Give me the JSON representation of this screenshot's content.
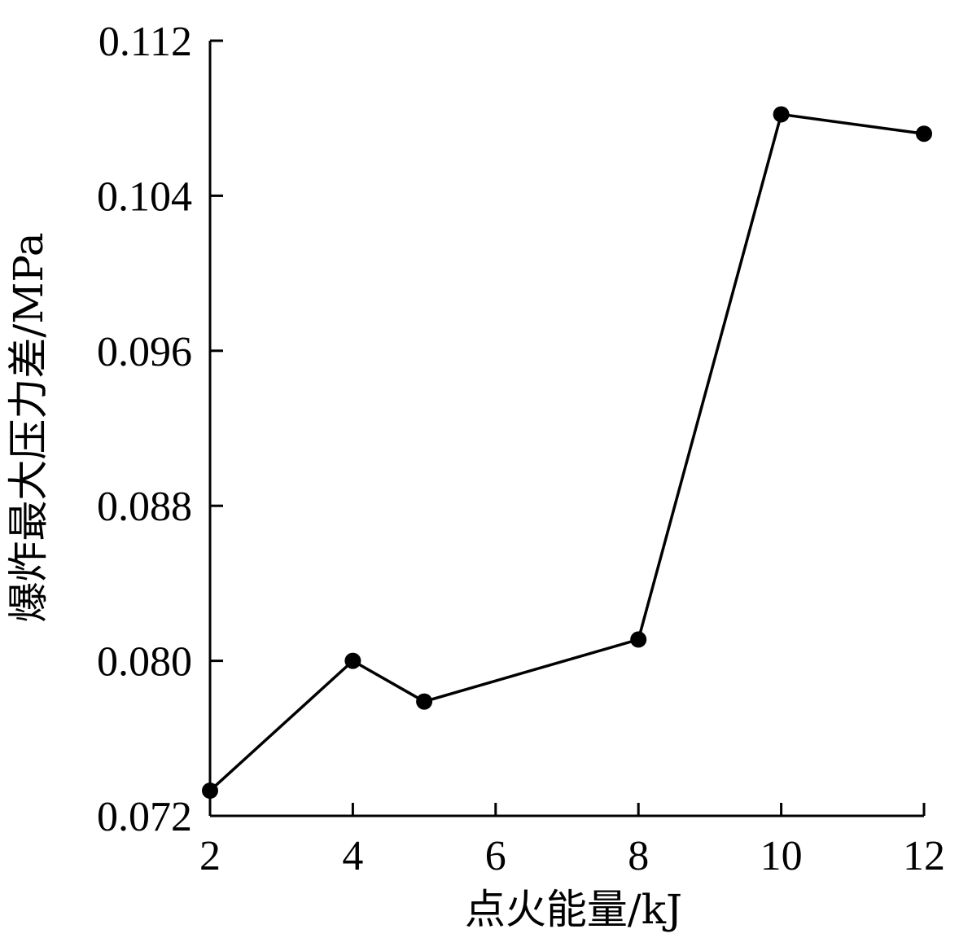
{
  "chart_data": {
    "type": "line",
    "xlabel": "点火能量/kJ",
    "ylabel": "爆炸最大压力差/MPa",
    "x_ticks": [
      "2",
      "4",
      "6",
      "8",
      "10",
      "12"
    ],
    "y_ticks": [
      "0.072",
      "0.080",
      "0.088",
      "0.096",
      "0.104",
      "0.112"
    ],
    "xlim": [
      2,
      12
    ],
    "ylim": [
      0.072,
      0.112
    ],
    "grid": false,
    "series": [
      {
        "x": [
          2,
          4,
          5,
          8,
          10,
          12
        ],
        "y": [
          0.0733,
          0.08,
          0.0779,
          0.0811,
          0.1082,
          0.1072
        ],
        "marker": "circle",
        "color": "#000000"
      }
    ]
  }
}
